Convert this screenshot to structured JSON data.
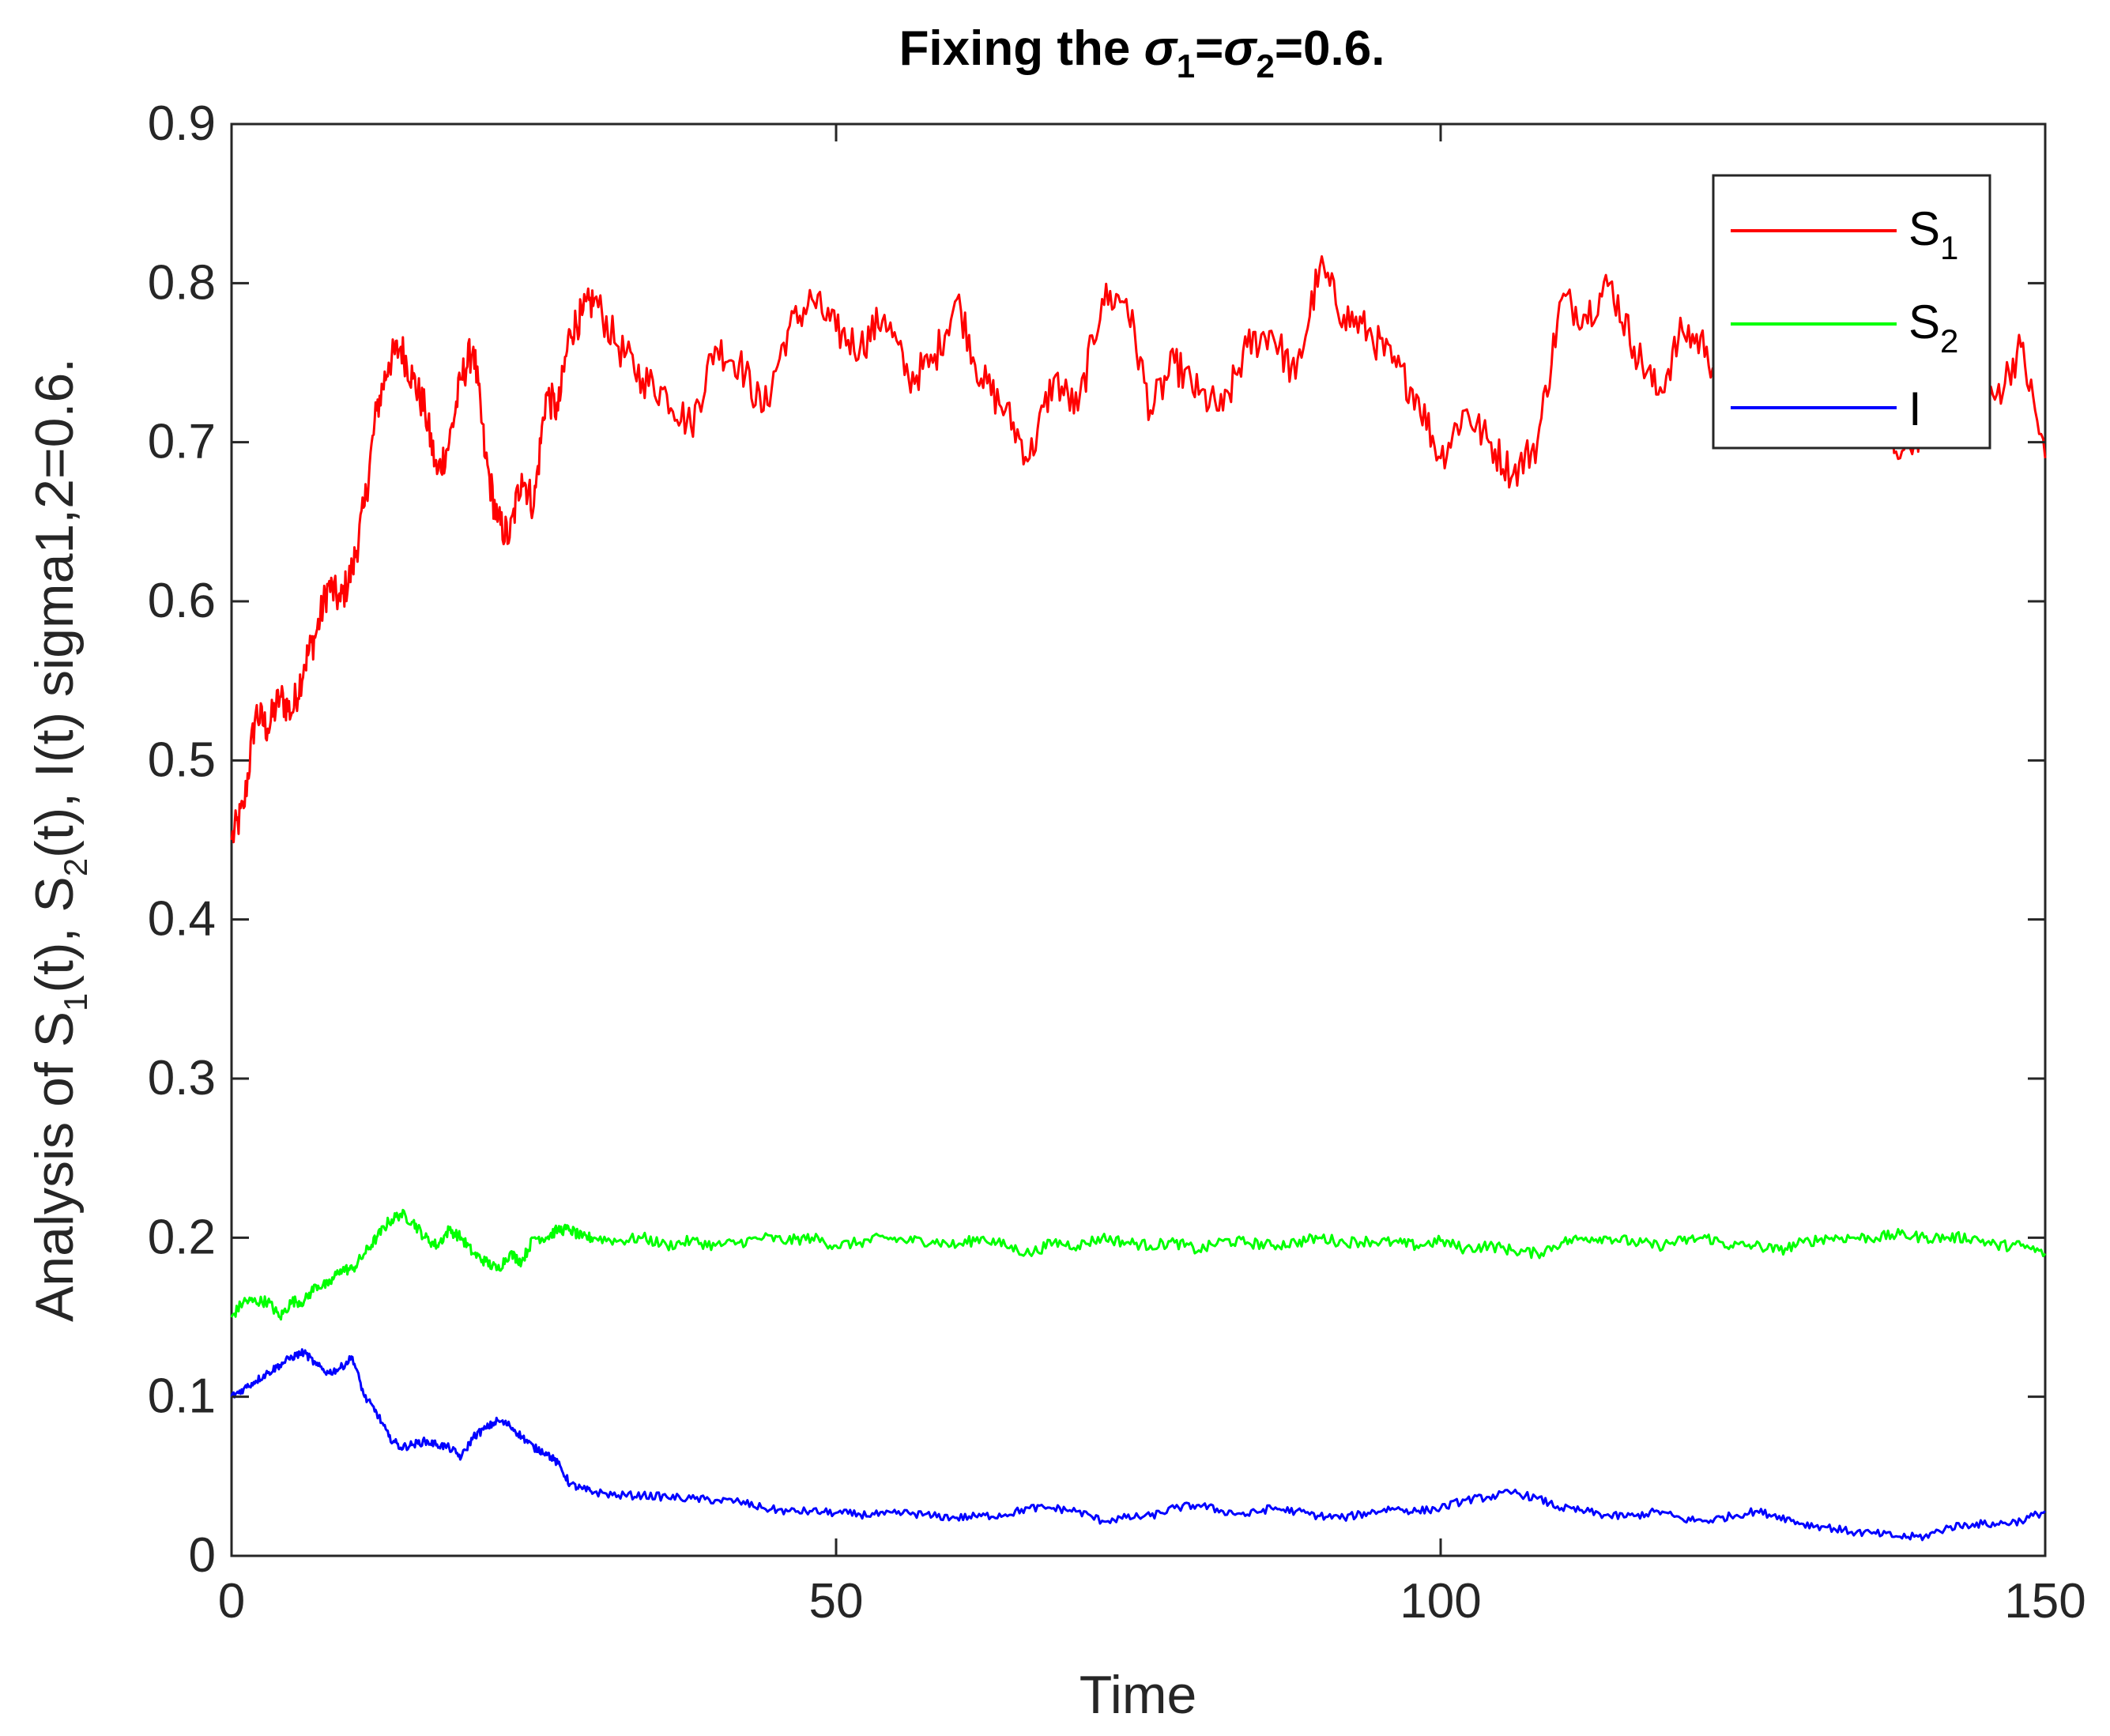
{
  "chart_data": {
    "type": "line",
    "title": {
      "prefix": "Fixing the ",
      "sym1": "σ",
      "sub1": "1",
      "eq1": "=",
      "sym2": "σ",
      "sub2": "2",
      "suffix": "=0.6."
    },
    "xlabel": "Time",
    "ylabel": {
      "p1": "Analysis of S",
      "s1": "1",
      "p2": "(t), S",
      "s2": "2",
      "p3": "(t), I(t) sigma1,2=0.6."
    },
    "xlim": [
      0,
      150
    ],
    "ylim": [
      0,
      0.9
    ],
    "xticks": [
      0,
      50,
      100,
      150
    ],
    "xtick_labels": [
      "0",
      "50",
      "100",
      "150"
    ],
    "yticks": [
      0,
      0.1,
      0.2,
      0.3,
      0.4,
      0.5,
      0.6,
      0.7,
      0.8,
      0.9
    ],
    "ytick_labels": [
      "0",
      "0.1",
      "0.2",
      "0.3",
      "0.4",
      "0.5",
      "0.6",
      "0.7",
      "0.8",
      "0.9"
    ],
    "grid": false,
    "legend_position": "top-right",
    "x": [
      0,
      1,
      2,
      3,
      4,
      5,
      6,
      7,
      8,
      9,
      10,
      11,
      12,
      13,
      14,
      15,
      16,
      17,
      18,
      19,
      20,
      21,
      22,
      23,
      24,
      25,
      26,
      27,
      28,
      29,
      30,
      32,
      34,
      36,
      38,
      40,
      42,
      44,
      46,
      48,
      50,
      52,
      54,
      56,
      58,
      60,
      62,
      64,
      66,
      68,
      70,
      72,
      74,
      76,
      78,
      80,
      82,
      84,
      86,
      88,
      90,
      92,
      94,
      96,
      98,
      100,
      102,
      104,
      106,
      108,
      110,
      112,
      114,
      116,
      118,
      120,
      122,
      124,
      126,
      128,
      130,
      132,
      134,
      136,
      138,
      140,
      142,
      144,
      146,
      148,
      150
    ],
    "series": [
      {
        "name": {
          "base": "S",
          "sub": "1"
        },
        "color": "#ff0000",
        "values": [
          0.45,
          0.47,
          0.53,
          0.52,
          0.54,
          0.53,
          0.56,
          0.58,
          0.61,
          0.6,
          0.62,
          0.66,
          0.72,
          0.75,
          0.76,
          0.74,
          0.72,
          0.68,
          0.7,
          0.74,
          0.76,
          0.69,
          0.65,
          0.64,
          0.68,
          0.66,
          0.73,
          0.72,
          0.77,
          0.78,
          0.79,
          0.76,
          0.74,
          0.73,
          0.71,
          0.76,
          0.75,
          0.72,
          0.77,
          0.79,
          0.77,
          0.76,
          0.78,
          0.74,
          0.75,
          0.79,
          0.74,
          0.72,
          0.69,
          0.74,
          0.72,
          0.79,
          0.79,
          0.72,
          0.75,
          0.73,
          0.72,
          0.76,
          0.77,
          0.74,
          0.81,
          0.78,
          0.77,
          0.75,
          0.73,
          0.69,
          0.72,
          0.7,
          0.68,
          0.7,
          0.79,
          0.78,
          0.8,
          0.76,
          0.73,
          0.77,
          0.76,
          0.71,
          0.72,
          0.74,
          0.73,
          0.74,
          0.75,
          0.72,
          0.69,
          0.71,
          0.73,
          0.71,
          0.73,
          0.76,
          0.69
        ]
      },
      {
        "name": {
          "base": "S",
          "sub": "2"
        },
        "color": "#00ff00",
        "values": [
          0.15,
          0.16,
          0.16,
          0.16,
          0.15,
          0.16,
          0.16,
          0.17,
          0.17,
          0.18,
          0.18,
          0.19,
          0.2,
          0.21,
          0.215,
          0.21,
          0.2,
          0.195,
          0.205,
          0.2,
          0.19,
          0.185,
          0.18,
          0.19,
          0.185,
          0.2,
          0.2,
          0.205,
          0.205,
          0.2,
          0.2,
          0.198,
          0.2,
          0.195,
          0.198,
          0.195,
          0.197,
          0.2,
          0.198,
          0.2,
          0.195,
          0.197,
          0.2,
          0.198,
          0.198,
          0.195,
          0.2,
          0.195,
          0.19,
          0.197,
          0.195,
          0.2,
          0.197,
          0.195,
          0.197,
          0.192,
          0.198,
          0.197,
          0.195,
          0.197,
          0.2,
          0.197,
          0.198,
          0.197,
          0.195,
          0.198,
          0.193,
          0.195,
          0.192,
          0.19,
          0.197,
          0.2,
          0.2,
          0.197,
          0.195,
          0.198,
          0.2,
          0.195,
          0.195,
          0.192,
          0.197,
          0.2,
          0.2,
          0.2,
          0.202,
          0.2,
          0.2,
          0.2,
          0.195,
          0.195,
          0.19
        ]
      },
      {
        "name": {
          "base": "I",
          "sub": ""
        },
        "color": "#0000ff",
        "values": [
          0.1,
          0.105,
          0.11,
          0.115,
          0.12,
          0.125,
          0.128,
          0.12,
          0.115,
          0.118,
          0.125,
          0.1,
          0.09,
          0.075,
          0.068,
          0.07,
          0.072,
          0.07,
          0.068,
          0.062,
          0.075,
          0.08,
          0.085,
          0.082,
          0.075,
          0.068,
          0.065,
          0.058,
          0.045,
          0.042,
          0.04,
          0.038,
          0.038,
          0.037,
          0.036,
          0.035,
          0.034,
          0.03,
          0.028,
          0.028,
          0.027,
          0.026,
          0.026,
          0.027,
          0.025,
          0.024,
          0.025,
          0.026,
          0.03,
          0.03,
          0.028,
          0.022,
          0.024,
          0.025,
          0.03,
          0.032,
          0.028,
          0.026,
          0.03,
          0.028,
          0.025,
          0.024,
          0.027,
          0.03,
          0.028,
          0.03,
          0.035,
          0.037,
          0.04,
          0.036,
          0.03,
          0.028,
          0.025,
          0.025,
          0.028,
          0.023,
          0.022,
          0.025,
          0.028,
          0.025,
          0.02,
          0.018,
          0.015,
          0.014,
          0.012,
          0.012,
          0.018,
          0.02,
          0.02,
          0.022,
          0.028
        ]
      }
    ]
  }
}
